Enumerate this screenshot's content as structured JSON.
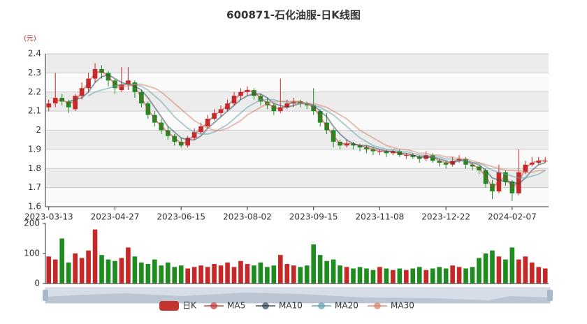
{
  "chart_data": {
    "type": "candlestick",
    "title": "600871-石化油服-日K线图",
    "y_unit": "(元)",
    "categories": [
      "2023-03-13",
      null,
      null,
      null,
      null,
      null,
      null,
      null,
      null,
      null,
      "2023-04-27",
      null,
      null,
      null,
      null,
      null,
      null,
      null,
      null,
      null,
      "2023-06-15",
      null,
      null,
      null,
      null,
      null,
      null,
      null,
      null,
      null,
      "2023-08-02",
      null,
      null,
      null,
      null,
      null,
      null,
      null,
      null,
      null,
      "2023-09-15",
      null,
      null,
      null,
      null,
      null,
      null,
      null,
      null,
      null,
      "2023-11-08",
      null,
      null,
      null,
      null,
      null,
      null,
      null,
      null,
      null,
      "2023-12-22",
      null,
      null,
      null,
      null,
      null,
      null,
      null,
      null,
      null,
      "2024-02-07",
      null,
      null,
      null,
      null,
      null
    ],
    "ylim": [
      1.6,
      2.4
    ],
    "yticks": [
      1.6,
      1.7,
      1.8,
      1.9,
      2,
      2.1,
      2.2,
      2.3,
      2.4
    ],
    "split_area": true,
    "up_color": "#c62828",
    "down_color": "#1e8c1e",
    "series": [
      {
        "name": "日K",
        "type": "candlestick",
        "color": "#c23531",
        "values": [
          [
            2.12,
            2.14,
            2.1,
            2.16
          ],
          [
            2.14,
            2.17,
            2.12,
            2.3
          ],
          [
            2.17,
            2.15,
            2.13,
            2.19
          ],
          [
            2.15,
            2.12,
            2.09,
            2.16
          ],
          [
            2.11,
            2.18,
            2.1,
            2.19
          ],
          [
            2.18,
            2.22,
            2.16,
            2.25
          ],
          [
            2.22,
            2.27,
            2.2,
            2.3
          ],
          [
            2.27,
            2.32,
            2.25,
            2.35
          ],
          [
            2.32,
            2.3,
            2.27,
            2.34
          ],
          [
            2.3,
            2.26,
            2.23,
            2.31
          ],
          [
            2.26,
            2.22,
            2.19,
            2.27
          ],
          [
            2.21,
            2.24,
            2.2,
            2.33
          ],
          [
            2.24,
            2.26,
            2.21,
            2.33
          ],
          [
            2.25,
            2.2,
            2.17,
            2.26
          ],
          [
            2.2,
            2.14,
            2.12,
            2.21
          ],
          [
            2.14,
            2.08,
            2.06,
            2.15
          ],
          [
            2.08,
            2.04,
            2.02,
            2.1
          ],
          [
            2.04,
            2.0,
            1.98,
            2.06
          ],
          [
            2.0,
            1.97,
            1.95,
            2.02
          ],
          [
            1.97,
            1.94,
            1.92,
            1.98
          ],
          [
            1.94,
            1.92,
            1.91,
            1.96
          ],
          [
            1.92,
            1.96,
            1.91,
            1.97
          ],
          [
            1.96,
            1.99,
            1.95,
            2.01
          ],
          [
            1.99,
            2.02,
            1.98,
            2.04
          ],
          [
            2.02,
            2.06,
            2.01,
            2.08
          ],
          [
            2.06,
            2.09,
            2.05,
            2.11
          ],
          [
            2.09,
            2.11,
            2.07,
            2.13
          ],
          [
            2.11,
            2.14,
            2.1,
            2.16
          ],
          [
            2.14,
            2.18,
            2.13,
            2.2
          ],
          [
            2.18,
            2.2,
            2.16,
            2.22
          ],
          [
            2.2,
            2.21,
            2.18,
            2.23
          ],
          [
            2.21,
            2.18,
            2.16,
            2.22
          ],
          [
            2.18,
            2.15,
            2.13,
            2.19
          ],
          [
            2.15,
            2.13,
            2.11,
            2.17
          ],
          [
            2.13,
            2.1,
            2.08,
            2.14
          ],
          [
            2.1,
            2.12,
            2.09,
            2.27
          ],
          [
            2.12,
            2.14,
            2.11,
            2.16
          ],
          [
            2.14,
            2.15,
            2.12,
            2.17
          ],
          [
            2.15,
            2.14,
            2.12,
            2.16
          ],
          [
            2.14,
            2.13,
            2.11,
            2.15
          ],
          [
            2.13,
            2.1,
            2.08,
            2.22
          ],
          [
            2.1,
            2.04,
            2.02,
            2.11
          ],
          [
            2.04,
            2.0,
            1.98,
            2.09
          ],
          [
            2.0,
            1.94,
            1.91,
            2.01
          ],
          [
            1.94,
            1.92,
            1.9,
            1.95
          ],
          [
            1.92,
            1.93,
            1.91,
            1.95
          ],
          [
            1.93,
            1.92,
            1.9,
            1.94
          ],
          [
            1.92,
            1.91,
            1.89,
            1.93
          ],
          [
            1.91,
            1.9,
            1.88,
            1.92
          ],
          [
            1.9,
            1.89,
            1.87,
            1.91
          ],
          [
            1.89,
            1.89,
            1.87,
            1.9
          ],
          [
            1.89,
            1.88,
            1.86,
            1.9
          ],
          [
            1.88,
            1.89,
            1.87,
            1.9
          ],
          [
            1.89,
            1.87,
            1.86,
            1.9
          ],
          [
            1.87,
            1.87,
            1.85,
            1.88
          ],
          [
            1.87,
            1.86,
            1.85,
            1.88
          ],
          [
            1.86,
            1.85,
            1.83,
            1.87
          ],
          [
            1.85,
            1.87,
            1.84,
            1.89
          ],
          [
            1.87,
            1.84,
            1.83,
            1.88
          ],
          [
            1.84,
            1.83,
            1.81,
            1.85
          ],
          [
            1.83,
            1.82,
            1.8,
            1.84
          ],
          [
            1.82,
            1.84,
            1.81,
            1.86
          ],
          [
            1.84,
            1.85,
            1.83,
            1.87
          ],
          [
            1.85,
            1.82,
            1.8,
            1.86
          ],
          [
            1.82,
            1.81,
            1.79,
            1.83
          ],
          [
            1.81,
            1.79,
            1.77,
            1.82
          ],
          [
            1.79,
            1.72,
            1.7,
            1.8
          ],
          [
            1.72,
            1.68,
            1.64,
            1.74
          ],
          [
            1.68,
            1.78,
            1.67,
            1.82
          ],
          [
            1.78,
            1.73,
            1.71,
            1.79
          ],
          [
            1.73,
            1.67,
            1.63,
            1.74
          ],
          [
            1.67,
            1.78,
            1.66,
            1.9
          ],
          [
            1.78,
            1.82,
            1.77,
            1.84
          ],
          [
            1.82,
            1.83,
            1.81,
            1.86
          ],
          [
            1.83,
            1.84,
            1.82,
            1.86
          ],
          [
            1.84,
            1.84,
            1.83,
            1.86
          ]
        ]
      },
      {
        "name": "MA5",
        "type": "line",
        "color": "#c23531",
        "values": [
          null,
          2.15,
          2.16,
          2.14,
          2.15,
          2.2,
          2.25,
          2.3,
          2.31,
          2.28,
          2.24,
          2.23,
          2.25,
          2.23,
          2.17,
          2.11,
          2.06,
          2.02,
          1.99,
          1.96,
          1.93,
          1.94,
          1.98,
          2.01,
          2.04,
          2.08,
          2.1,
          2.13,
          2.16,
          2.19,
          2.21,
          2.2,
          2.17,
          2.14,
          2.12,
          2.11,
          2.13,
          2.15,
          2.15,
          2.14,
          2.12,
          2.07,
          2.02,
          1.97,
          1.93,
          1.93,
          1.93,
          1.92,
          1.91,
          1.9,
          1.89,
          1.89,
          1.89,
          1.88,
          1.87,
          1.87,
          1.86,
          1.86,
          1.86,
          1.84,
          1.83,
          1.83,
          1.85,
          1.84,
          1.82,
          1.8,
          1.76,
          1.7,
          1.73,
          1.76,
          1.7,
          1.73,
          1.8,
          1.83,
          1.84,
          1.84
        ]
      },
      {
        "name": "MA10",
        "type": "line",
        "color": "#2f4554",
        "values": [
          null,
          null,
          null,
          2.15,
          2.16,
          2.17,
          2.2,
          2.25,
          2.28,
          2.29,
          2.27,
          2.25,
          2.24,
          2.23,
          2.21,
          2.17,
          2.12,
          2.07,
          2.02,
          1.99,
          1.96,
          1.95,
          1.95,
          1.97,
          2.01,
          2.04,
          2.07,
          2.1,
          2.13,
          2.16,
          2.18,
          2.19,
          2.19,
          2.17,
          2.14,
          2.13,
          2.12,
          2.13,
          2.14,
          2.14,
          2.13,
          2.1,
          2.07,
          2.02,
          1.98,
          1.95,
          1.93,
          1.92,
          1.92,
          1.91,
          1.9,
          1.89,
          1.89,
          1.88,
          1.88,
          1.87,
          1.86,
          1.86,
          1.86,
          1.85,
          1.84,
          1.83,
          1.84,
          1.84,
          1.83,
          1.82,
          1.79,
          1.75,
          1.74,
          1.73,
          1.73,
          1.72,
          1.75,
          1.79,
          1.82,
          1.83
        ]
      },
      {
        "name": "MA20",
        "type": "line",
        "color": "#61a0a8",
        "values": [
          null,
          null,
          null,
          null,
          null,
          null,
          2.18,
          2.2,
          2.21,
          2.22,
          2.23,
          2.24,
          2.24,
          2.24,
          2.23,
          2.21,
          2.18,
          2.15,
          2.11,
          2.07,
          2.04,
          2.01,
          1.99,
          1.98,
          1.98,
          1.99,
          2.01,
          2.03,
          2.06,
          2.09,
          2.12,
          2.14,
          2.16,
          2.16,
          2.16,
          2.15,
          2.15,
          2.14,
          2.14,
          2.14,
          2.13,
          2.12,
          2.1,
          2.08,
          2.05,
          2.02,
          1.99,
          1.96,
          1.94,
          1.92,
          1.91,
          1.9,
          1.9,
          1.89,
          1.89,
          1.88,
          1.87,
          1.87,
          1.86,
          1.86,
          1.85,
          1.85,
          1.84,
          1.84,
          1.83,
          1.83,
          1.81,
          1.79,
          1.78,
          1.77,
          1.76,
          1.75,
          1.75,
          1.76,
          1.77,
          1.79
        ]
      },
      {
        "name": "MA30",
        "type": "line",
        "color": "#d48265",
        "values": [
          null,
          null,
          null,
          null,
          null,
          null,
          null,
          null,
          null,
          null,
          2.22,
          2.23,
          2.23,
          2.24,
          2.24,
          2.23,
          2.22,
          2.2,
          2.17,
          2.14,
          2.11,
          2.08,
          2.05,
          2.03,
          2.01,
          2.0,
          2.0,
          2.01,
          2.03,
          2.05,
          2.08,
          2.1,
          2.12,
          2.14,
          2.15,
          2.15,
          2.15,
          2.15,
          2.14,
          2.14,
          2.14,
          2.13,
          2.12,
          2.1,
          2.08,
          2.06,
          2.03,
          2.0,
          1.98,
          1.96,
          1.94,
          1.92,
          1.91,
          1.9,
          1.9,
          1.89,
          1.88,
          1.88,
          1.87,
          1.87,
          1.86,
          1.86,
          1.85,
          1.85,
          1.84,
          1.83,
          1.82,
          1.81,
          1.8,
          1.79,
          1.79,
          1.79,
          1.78,
          1.78,
          1.79,
          1.79
        ]
      }
    ],
    "volume": {
      "ylim": [
        0,
        200
      ],
      "yticks": [
        0,
        100,
        200
      ],
      "values": [
        90,
        80,
        150,
        70,
        100,
        85,
        110,
        180,
        95,
        80,
        75,
        85,
        120,
        90,
        70,
        65,
        80,
        60,
        70,
        55,
        60,
        50,
        55,
        60,
        55,
        65,
        60,
        70,
        55,
        75,
        65,
        60,
        70,
        55,
        60,
        95,
        65,
        60,
        55,
        60,
        130,
        95,
        75,
        80,
        60,
        55,
        50,
        55,
        50,
        45,
        55,
        50,
        45,
        50,
        45,
        50,
        55,
        45,
        50,
        55,
        50,
        60,
        55,
        50,
        55,
        85,
        100,
        110,
        90,
        80,
        120,
        80,
        90,
        70,
        55,
        50
      ]
    }
  }
}
